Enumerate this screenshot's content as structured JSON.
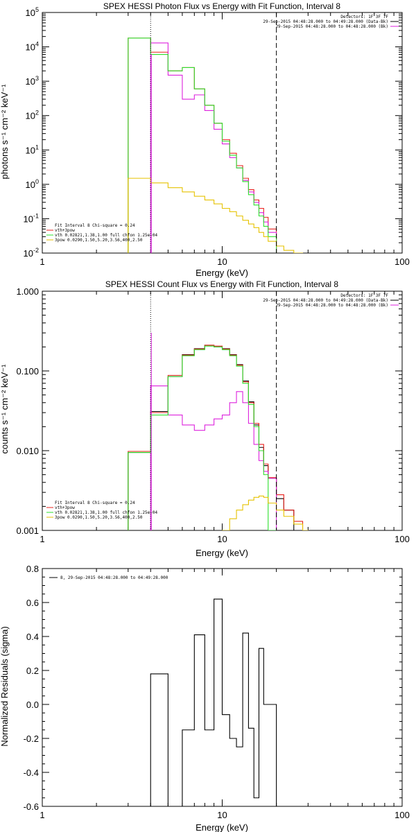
{
  "colors": {
    "black": "#000000",
    "red": "#e8201b",
    "magenta": "#dd22dd",
    "green": "#2ee02e",
    "yellow": "#e6c200"
  },
  "chart_data": [
    {
      "type": "line",
      "title": "SPEX HESSI Photon Flux vs Energy with Fit Function, Interval 8",
      "xlabel": "Energy (keV)",
      "ylabel": "photons s⁻¹ cm⁻² keV⁻¹",
      "xscale": "log",
      "yscale": "log",
      "xlim": [
        1,
        100
      ],
      "ylim": [
        0.01,
        100000
      ],
      "xticks": [
        "1",
        "10",
        "100"
      ],
      "yticks": [
        {
          "v": 0.01,
          "b": "10",
          "e": "-2"
        },
        {
          "v": 0.1,
          "b": "10",
          "e": "-1"
        },
        {
          "v": 1,
          "b": "10",
          "e": "0"
        },
        {
          "v": 10,
          "b": "10",
          "e": "1"
        },
        {
          "v": 100,
          "b": "10",
          "e": "2"
        },
        {
          "v": 1000,
          "b": "10",
          "e": "3"
        },
        {
          "v": 10000,
          "b": "10",
          "e": "4"
        },
        {
          "v": 100000,
          "b": "10",
          "e": "5"
        }
      ],
      "vlines": [
        {
          "x": 4.0,
          "style": "dotted"
        },
        {
          "x": 20.0,
          "style": "dashed"
        }
      ],
      "magenta_vline": 4.0,
      "header_lines": [
        "Detectors: 1F 3F 7F",
        "29-Sep-2015 04:48:28.000 to 04:49:28.000 (Data-Bk)",
        "29-Sep-2015 04:48:28.000 to 04:48:28.000 (Bk)"
      ],
      "header_marks": [
        null,
        "black",
        "magenta"
      ],
      "fit_lines": [
        "Fit Interval 8   Chi-square = 0.24",
        "vth+3pow",
        "vth 0.02821,1.38,1.00  full chfon 1.25e-04",
        "3pow 0.0290,1.50,5.20,3.56,400,2.50"
      ],
      "fit_marks": [
        null,
        "red",
        "green",
        "yellow"
      ],
      "series": [
        {
          "name": "vth+3pow",
          "color": "red",
          "edges": [
            3,
            4,
            5,
            6,
            7,
            8,
            9,
            10,
            11,
            12,
            13,
            14,
            15,
            16,
            17,
            18,
            20
          ],
          "values": [
            18000,
            7000,
            2000,
            2500,
            600,
            200,
            60,
            20,
            8,
            3.5,
            1.5,
            0.7,
            0.35,
            0.2,
            0.11,
            0.05
          ]
        },
        {
          "name": "Data-Bk",
          "color": "magenta",
          "edges": [
            4,
            5,
            6,
            7,
            8,
            9,
            10,
            11,
            12,
            13,
            14,
            15,
            16,
            17,
            18,
            20
          ],
          "values": [
            13000,
            1500,
            300,
            400,
            140,
            40,
            15,
            6,
            3,
            1.3,
            0.6,
            0.3,
            0.15,
            0.08,
            0.04
          ]
        },
        {
          "name": "vth",
          "color": "green",
          "edges": [
            3,
            4,
            5,
            6,
            7,
            8,
            9,
            10,
            11,
            12,
            13,
            14,
            15,
            16,
            17,
            18,
            20
          ],
          "values": [
            18000,
            6000,
            2000,
            2500,
            600,
            200,
            60,
            18,
            7,
            3,
            1.2,
            0.5,
            0.25,
            0.12,
            0.06,
            0.03
          ]
        },
        {
          "name": "3pow",
          "color": "yellow",
          "edges": [
            3,
            4,
            5,
            6,
            7,
            8,
            9,
            10,
            11,
            12,
            13,
            14,
            15,
            16,
            17,
            18,
            20,
            22,
            25,
            28,
            30
          ],
          "values": [
            1.5,
            1.1,
            0.8,
            0.6,
            0.45,
            0.35,
            0.27,
            0.2,
            0.16,
            0.12,
            0.09,
            0.07,
            0.055,
            0.04,
            0.03,
            0.022,
            0.016,
            0.012,
            0.01,
            0.008
          ]
        }
      ]
    },
    {
      "type": "line",
      "title": "SPEX HESSI Count Flux vs Energy with Fit Function, Interval 8",
      "xlabel": "Energy (keV)",
      "ylabel": "counts s⁻¹ cm⁻² keV⁻¹",
      "xscale": "log",
      "yscale": "log",
      "xlim": [
        1,
        100
      ],
      "ylim": [
        0.001,
        1
      ],
      "xticks": [
        "1",
        "10",
        "100"
      ],
      "yticks": [
        {
          "v": 0.001,
          "t": "0.001"
        },
        {
          "v": 0.01,
          "t": "0.010"
        },
        {
          "v": 0.1,
          "t": "0.100"
        },
        {
          "v": 1,
          "t": "1.000"
        }
      ],
      "vlines": [
        {
          "x": 4.0,
          "style": "dotted"
        },
        {
          "x": 20.0,
          "style": "dashed"
        }
      ],
      "magenta_vline": 4.0,
      "header_lines": [
        "Detectors: 1F 3F 7F",
        "29-Sep-2015 04:48:28.000 to 04:49:28.000 (Data-Bk)",
        "29-Sep-2015 04:48:28.000 to 04:48:28.000 (Bk)"
      ],
      "header_marks": [
        null,
        "black",
        "magenta"
      ],
      "fit_lines": [
        "Fit Interval 8   Chi-square = 0.24",
        "vth+3pow",
        "vth 0.02821,1.38,1.00  full chfon 1.25e-04",
        "3pow 0.0290,1.50,5.20,3.56,400,2.50"
      ],
      "fit_marks": [
        null,
        "red",
        "green",
        "yellow"
      ],
      "series": [
        {
          "name": "Data-Bk",
          "color": "black",
          "edges": [
            3,
            4,
            5,
            6,
            7,
            8,
            9,
            10,
            11,
            12,
            13,
            14,
            15,
            16,
            17,
            18,
            20,
            22,
            25
          ],
          "values": [
            0.0095,
            0.031,
            0.085,
            0.16,
            0.19,
            0.21,
            0.2,
            0.19,
            0.16,
            0.12,
            0.075,
            0.041,
            0.021,
            0.011,
            0.0065,
            0.0045,
            0.0025,
            0.0018
          ]
        },
        {
          "name": "vth+3pow",
          "color": "red",
          "edges": [
            3,
            4,
            5,
            6,
            7,
            8,
            9,
            10,
            11,
            12,
            13,
            14,
            15,
            16,
            17,
            18,
            20,
            22,
            25,
            28,
            30
          ],
          "values": [
            0.0098,
            0.03,
            0.088,
            0.158,
            0.188,
            0.21,
            0.205,
            0.188,
            0.158,
            0.118,
            0.073,
            0.04,
            0.022,
            0.012,
            0.0068,
            0.0046,
            0.0028,
            0.0018,
            0.0013,
            0.001
          ]
        },
        {
          "name": "Bk",
          "color": "magenta",
          "edges": [
            4,
            5,
            6,
            7,
            8,
            9,
            10,
            11,
            12,
            13,
            14,
            15,
            16,
            17,
            18,
            20
          ],
          "values": [
            0.065,
            0.028,
            0.021,
            0.018,
            0.021,
            0.025,
            0.028,
            0.04,
            0.055,
            0.04,
            0.022,
            0.012,
            0.0075,
            0.0055,
            0.0045
          ]
        },
        {
          "name": "vth",
          "color": "green",
          "edges": [
            3,
            4,
            5,
            6,
            7,
            8,
            9,
            10,
            11,
            12,
            13,
            14,
            15,
            16,
            17,
            18,
            20
          ],
          "values": [
            0.0095,
            0.028,
            0.085,
            0.155,
            0.185,
            0.205,
            0.2,
            0.185,
            0.155,
            0.115,
            0.07,
            0.038,
            0.02,
            0.01,
            0.005,
            0.001
          ]
        },
        {
          "name": "3pow",
          "color": "yellow",
          "edges": [
            10,
            11,
            12,
            13,
            14,
            15,
            16,
            17,
            18,
            20,
            22,
            25,
            28,
            30
          ],
          "values": [
            0.001,
            0.0014,
            0.0018,
            0.0021,
            0.0024,
            0.0026,
            0.0027,
            0.0026,
            0.0022,
            0.0018,
            0.0015,
            0.0012,
            0.001
          ]
        }
      ]
    },
    {
      "type": "line",
      "title": "",
      "xlabel": "Energy (keV)",
      "ylabel": "Normalized Residuals (sigma)",
      "xscale": "log",
      "yscale": "linear",
      "xlim": [
        1,
        100
      ],
      "ylim": [
        -0.6,
        0.8
      ],
      "xticks": [
        "1",
        "10",
        "100"
      ],
      "yticks": [
        {
          "v": -0.6,
          "t": "-0.6"
        },
        {
          "v": -0.4,
          "t": "-0.4"
        },
        {
          "v": -0.2,
          "t": "-0.2"
        },
        {
          "v": 0.0,
          "t": "0.0"
        },
        {
          "v": 0.2,
          "t": "0.2"
        },
        {
          "v": 0.4,
          "t": "0.4"
        },
        {
          "v": 0.6,
          "t": "0.6"
        },
        {
          "v": 0.8,
          "t": "0.8"
        }
      ],
      "legend": "8, 29-Sep-2015 04:48:28.000 to 04:49:28.000",
      "series": [
        {
          "name": "8, 29-Sep-2015 04:48:28.000 to 04:49:28.000",
          "color": "black",
          "baseline": -0.6,
          "edges": [
            4,
            5,
            6,
            7,
            8,
            9,
            10,
            11,
            12,
            13,
            14,
            15,
            16,
            17,
            18,
            20
          ],
          "values": [
            0.18,
            -0.6,
            -0.15,
            0.41,
            -0.15,
            0.62,
            -0.06,
            -0.2,
            -0.25,
            0.42,
            -0.14,
            -0.55,
            0.33,
            0.0,
            0.0
          ]
        }
      ]
    }
  ]
}
